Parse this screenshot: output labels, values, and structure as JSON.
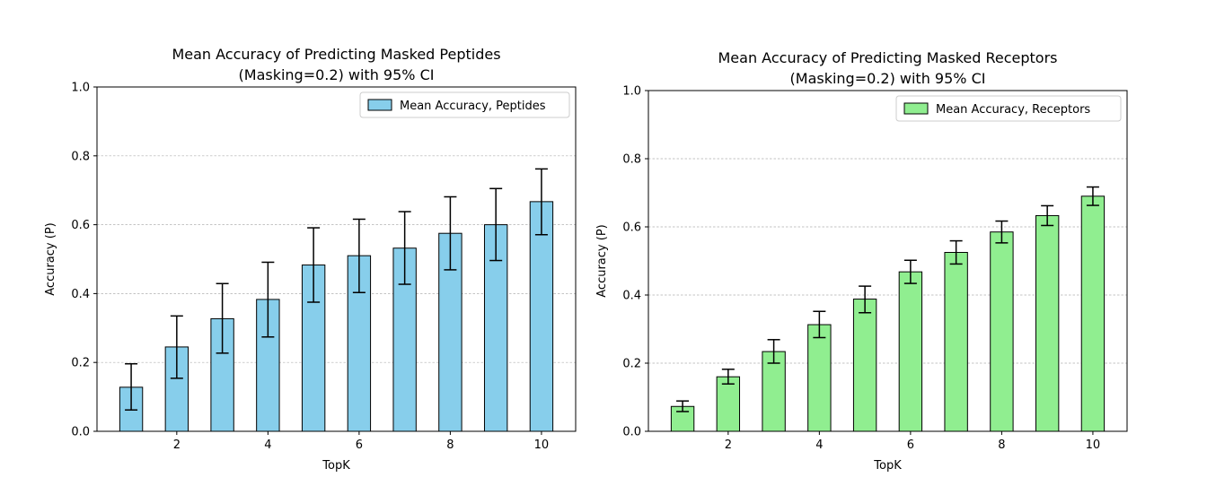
{
  "chart_data": [
    {
      "type": "bar",
      "title": "Mean Accuracy of Predicting Masked Peptides\n(Masking=0.2) with 95% CI",
      "xlabel": "TopK",
      "ylabel": "Accuracy (P)",
      "x": [
        1,
        2,
        3,
        4,
        5,
        6,
        7,
        8,
        9,
        10
      ],
      "xticks": [
        2,
        4,
        6,
        8,
        10
      ],
      "ylim": [
        0,
        1.0
      ],
      "yticks": [
        0.0,
        0.2,
        0.4,
        0.6,
        0.8,
        1.0
      ],
      "grid": "y-dashed",
      "legend_position": "top-right",
      "color": "#87CEEB",
      "series": [
        {
          "name": "Mean Accuracy, Peptides",
          "values": [
            0.128,
            0.245,
            0.327,
            0.383,
            0.483,
            0.51,
            0.532,
            0.575,
            0.6,
            0.667
          ],
          "ci_low": [
            0.062,
            0.154,
            0.227,
            0.274,
            0.375,
            0.403,
            0.427,
            0.469,
            0.496,
            0.571
          ],
          "ci_high": [
            0.196,
            0.335,
            0.429,
            0.491,
            0.591,
            0.616,
            0.638,
            0.681,
            0.705,
            0.762
          ]
        }
      ]
    },
    {
      "type": "bar",
      "title": "Mean Accuracy of Predicting Masked Receptors\n(Masking=0.2) with 95% CI",
      "xlabel": "TopK",
      "ylabel": "Accuracy (P)",
      "x": [
        1,
        2,
        3,
        4,
        5,
        6,
        7,
        8,
        9,
        10
      ],
      "xticks": [
        2,
        4,
        6,
        8,
        10
      ],
      "ylim": [
        0,
        1.0
      ],
      "yticks": [
        0.0,
        0.2,
        0.4,
        0.6,
        0.8,
        1.0
      ],
      "grid": "y-dashed",
      "legend_position": "top-right",
      "color": "#90EE90",
      "series": [
        {
          "name": "Mean Accuracy, Receptors",
          "values": [
            0.073,
            0.16,
            0.234,
            0.313,
            0.388,
            0.468,
            0.525,
            0.585,
            0.633,
            0.69
          ],
          "ci_low": [
            0.058,
            0.139,
            0.2,
            0.275,
            0.348,
            0.434,
            0.491,
            0.553,
            0.604,
            0.663
          ],
          "ci_high": [
            0.089,
            0.182,
            0.269,
            0.352,
            0.426,
            0.502,
            0.559,
            0.617,
            0.662,
            0.717
          ]
        }
      ]
    }
  ]
}
